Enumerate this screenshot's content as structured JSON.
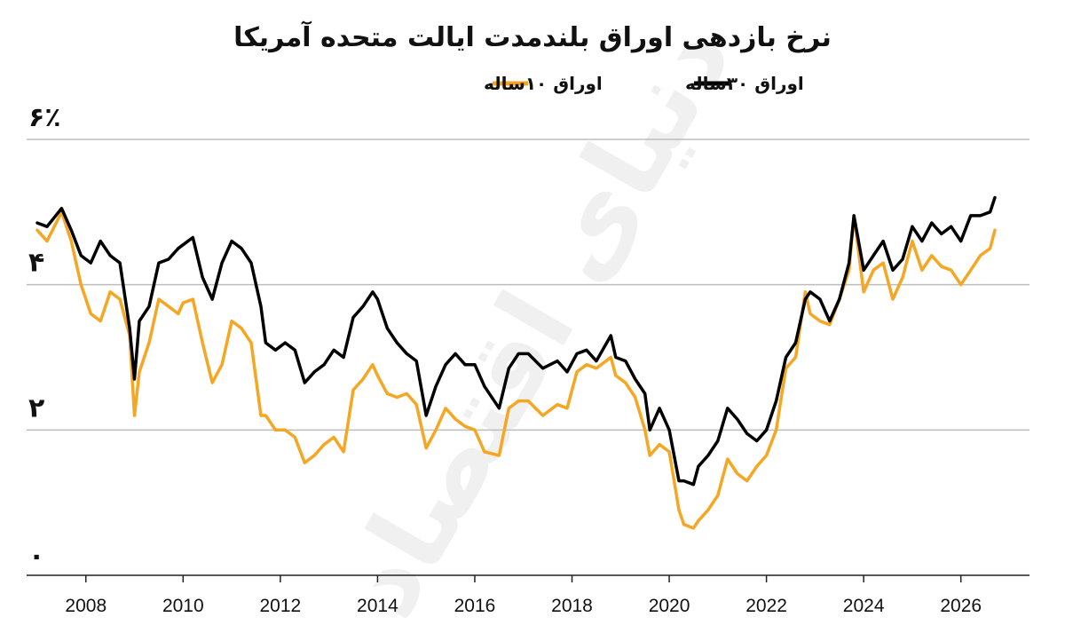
{
  "chart_data": {
    "type": "line",
    "title": "نرخ بازدهی اوراق بلندمدت ایالت متحده آمریکا",
    "watermark": "دنیای اقتصاد",
    "legend_position": "top-center",
    "y_tick_labels": [
      "۰",
      "۲",
      "۴",
      "۶٪"
    ],
    "y_ticks": [
      0,
      2,
      4,
      6
    ],
    "ylim": [
      0,
      6
    ],
    "x_ticks": [
      2008,
      2010,
      2012,
      2014,
      2016,
      2018,
      2020,
      2022,
      2024,
      2026
    ],
    "xlim": [
      2007.0,
      2026.9
    ],
    "grid": true,
    "series": [
      {
        "name": "اوراق ۳۰ساله",
        "color": "#000000",
        "x": [
          2007.0,
          2007.2,
          2007.5,
          2007.7,
          2007.9,
          2008.1,
          2008.3,
          2008.5,
          2008.7,
          2008.9,
          2009.0,
          2009.1,
          2009.3,
          2009.5,
          2009.7,
          2009.9,
          2010.0,
          2010.2,
          2010.4,
          2010.6,
          2010.8,
          2011.0,
          2011.2,
          2011.4,
          2011.6,
          2011.7,
          2011.9,
          2012.1,
          2012.3,
          2012.5,
          2012.7,
          2012.9,
          2013.1,
          2013.3,
          2013.5,
          2013.7,
          2013.9,
          2014.0,
          2014.2,
          2014.4,
          2014.6,
          2014.8,
          2015.0,
          2015.2,
          2015.4,
          2015.6,
          2015.8,
          2016.0,
          2016.2,
          2016.5,
          2016.7,
          2016.9,
          2017.1,
          2017.4,
          2017.7,
          2017.9,
          2018.1,
          2018.3,
          2018.5,
          2018.8,
          2018.9,
          2019.1,
          2019.3,
          2019.5,
          2019.6,
          2019.8,
          2020.0,
          2020.2,
          2020.3,
          2020.5,
          2020.6,
          2020.8,
          2021.0,
          2021.2,
          2021.4,
          2021.6,
          2021.8,
          2022.0,
          2022.2,
          2022.4,
          2022.6,
          2022.8,
          2022.9,
          2023.1,
          2023.3,
          2023.5,
          2023.7,
          2023.8,
          2024.0,
          2024.2,
          2024.4,
          2024.6,
          2024.8,
          2025.0,
          2025.2,
          2025.4,
          2025.6,
          2025.8,
          2026.0,
          2026.2,
          2026.4,
          2026.6,
          2026.7
        ],
        "values": [
          4.85,
          4.8,
          5.05,
          4.75,
          4.4,
          4.3,
          4.6,
          4.4,
          4.3,
          3.4,
          2.7,
          3.5,
          3.7,
          4.3,
          4.35,
          4.5,
          4.55,
          4.65,
          4.1,
          3.8,
          4.3,
          4.6,
          4.5,
          4.3,
          3.7,
          3.2,
          3.1,
          3.2,
          3.1,
          2.65,
          2.8,
          2.9,
          3.1,
          3.0,
          3.55,
          3.7,
          3.9,
          3.8,
          3.4,
          3.2,
          3.05,
          2.95,
          2.2,
          2.6,
          2.9,
          3.05,
          2.9,
          2.9,
          2.6,
          2.3,
          2.85,
          3.05,
          3.05,
          2.85,
          2.95,
          2.8,
          3.05,
          3.1,
          2.95,
          3.3,
          3.0,
          2.95,
          2.7,
          2.5,
          2.0,
          2.3,
          2.0,
          1.3,
          1.3,
          1.25,
          1.5,
          1.65,
          1.85,
          2.3,
          2.15,
          1.95,
          1.85,
          2.0,
          2.4,
          3.0,
          3.2,
          3.8,
          3.9,
          3.8,
          3.5,
          3.8,
          4.3,
          4.95,
          4.2,
          4.4,
          4.6,
          4.2,
          4.35,
          4.8,
          4.6,
          4.85,
          4.7,
          4.8,
          4.6,
          4.95,
          4.95,
          5.0,
          5.2
        ]
      },
      {
        "name": "اوراق ۱۰ساله",
        "color": "#f5a623",
        "x": [
          2007.0,
          2007.2,
          2007.5,
          2007.7,
          2007.9,
          2008.1,
          2008.3,
          2008.5,
          2008.7,
          2008.9,
          2009.0,
          2009.1,
          2009.3,
          2009.5,
          2009.7,
          2009.9,
          2010.0,
          2010.2,
          2010.4,
          2010.6,
          2010.8,
          2011.0,
          2011.2,
          2011.4,
          2011.6,
          2011.7,
          2011.9,
          2012.1,
          2012.3,
          2012.5,
          2012.7,
          2012.9,
          2013.1,
          2013.3,
          2013.5,
          2013.7,
          2013.9,
          2014.0,
          2014.2,
          2014.4,
          2014.6,
          2014.8,
          2015.0,
          2015.2,
          2015.4,
          2015.6,
          2015.8,
          2016.0,
          2016.2,
          2016.5,
          2016.7,
          2016.9,
          2017.1,
          2017.4,
          2017.7,
          2017.9,
          2018.1,
          2018.3,
          2018.5,
          2018.8,
          2018.9,
          2019.1,
          2019.3,
          2019.5,
          2019.6,
          2019.8,
          2020.0,
          2020.2,
          2020.3,
          2020.5,
          2020.6,
          2020.8,
          2021.0,
          2021.2,
          2021.4,
          2021.6,
          2021.8,
          2022.0,
          2022.2,
          2022.4,
          2022.6,
          2022.8,
          2022.9,
          2023.1,
          2023.3,
          2023.5,
          2023.7,
          2023.8,
          2024.0,
          2024.2,
          2024.4,
          2024.6,
          2024.8,
          2025.0,
          2025.2,
          2025.4,
          2025.6,
          2025.8,
          2026.0,
          2026.2,
          2026.4,
          2026.6,
          2026.7
        ],
        "values": [
          4.75,
          4.6,
          5.0,
          4.6,
          4.0,
          3.6,
          3.5,
          3.9,
          3.8,
          3.3,
          2.2,
          2.8,
          3.2,
          3.8,
          3.7,
          3.6,
          3.75,
          3.8,
          3.2,
          2.65,
          2.9,
          3.5,
          3.4,
          3.2,
          2.2,
          2.2,
          2.0,
          2.0,
          1.9,
          1.55,
          1.65,
          1.8,
          1.9,
          1.7,
          2.55,
          2.7,
          2.9,
          2.75,
          2.5,
          2.45,
          2.5,
          2.35,
          1.75,
          2.0,
          2.3,
          2.15,
          2.05,
          2.0,
          1.7,
          1.65,
          2.3,
          2.4,
          2.4,
          2.2,
          2.35,
          2.3,
          2.8,
          2.9,
          2.85,
          3.0,
          2.75,
          2.65,
          2.45,
          2.0,
          1.65,
          1.8,
          1.7,
          0.9,
          0.7,
          0.65,
          0.75,
          0.9,
          1.1,
          1.6,
          1.4,
          1.3,
          1.5,
          1.65,
          2.0,
          2.85,
          3.0,
          3.9,
          3.6,
          3.5,
          3.45,
          3.8,
          4.2,
          4.95,
          3.9,
          4.2,
          4.3,
          3.8,
          4.1,
          4.6,
          4.2,
          4.4,
          4.25,
          4.2,
          4.0,
          4.2,
          4.4,
          4.5,
          4.75
        ]
      }
    ]
  }
}
